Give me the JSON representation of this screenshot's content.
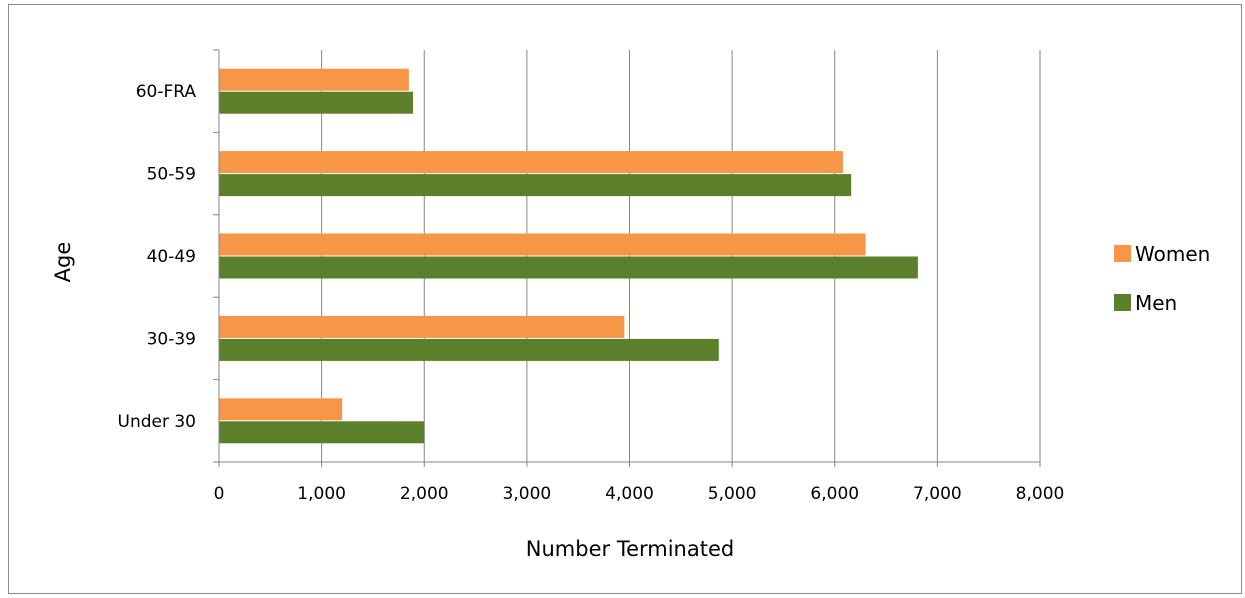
{
  "chart_data": {
    "type": "bar",
    "orientation": "horizontal",
    "categories": [
      "Under 30",
      "30-39",
      "40-49",
      "50-59",
      "60-FRA"
    ],
    "series": [
      {
        "name": "Women",
        "color": "#f79646",
        "values": [
          1200,
          3950,
          6300,
          6080,
          1850
        ]
      },
      {
        "name": "Men",
        "color": "#5b7f2a",
        "values": [
          2000,
          4870,
          6810,
          6160,
          1890
        ]
      }
    ],
    "xlabel": "Number Terminated",
    "ylabel": "Age",
    "xlim": [
      0,
      8000
    ],
    "xticks": [
      0,
      1000,
      2000,
      3000,
      4000,
      5000,
      6000,
      7000,
      8000
    ],
    "xtick_labels": [
      "0",
      "1,000",
      "2,000",
      "3,000",
      "4,000",
      "5,000",
      "6,000",
      "7,000",
      "8,000"
    ],
    "grid": "vertical",
    "legend_position": "right",
    "legend": [
      {
        "label": "Women",
        "color": "#f79646"
      },
      {
        "label": "Men",
        "color": "#5b7f2a"
      }
    ]
  }
}
